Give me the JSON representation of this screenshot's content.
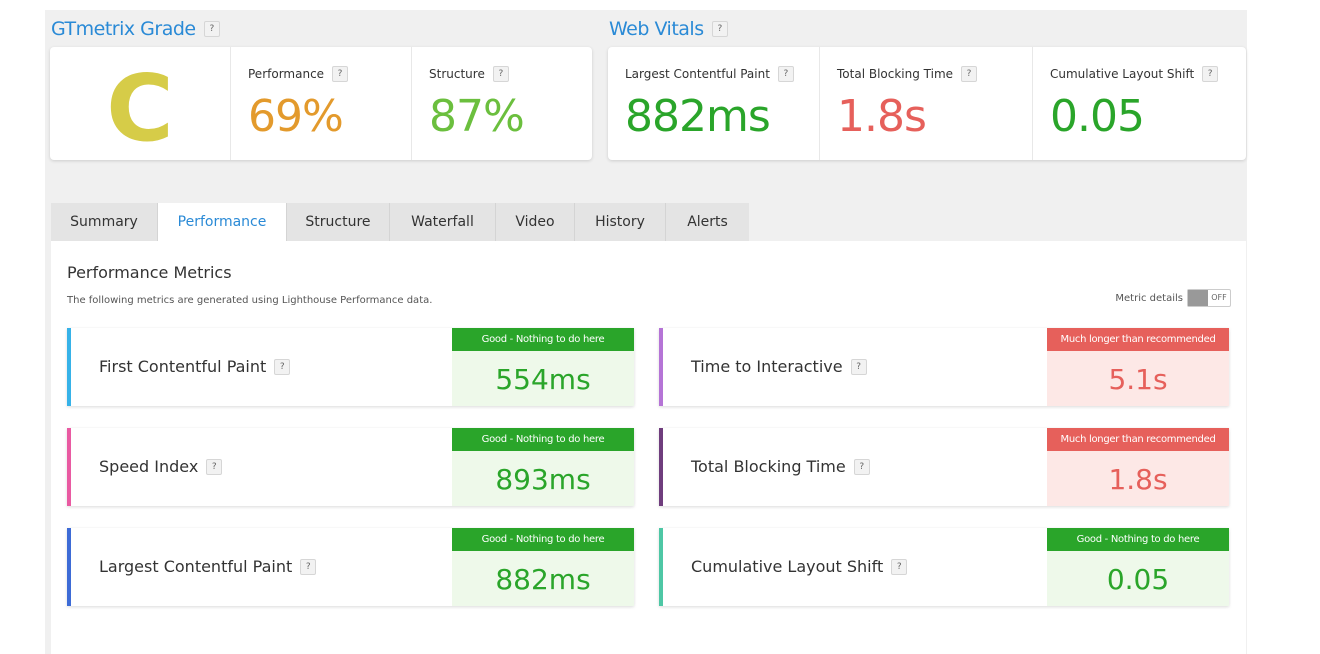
{
  "grade_section": {
    "title": "GTmetrix Grade",
    "grade": "C",
    "performance": {
      "label": "Performance",
      "value": "69%"
    },
    "structure": {
      "label": "Structure",
      "value": "87%"
    }
  },
  "vitals_section": {
    "title": "Web Vitals",
    "lcp": {
      "label": "Largest Contentful Paint",
      "value": "882ms"
    },
    "tbt": {
      "label": "Total Blocking Time",
      "value": "1.8s"
    },
    "cls": {
      "label": "Cumulative Layout Shift",
      "value": "0.05"
    }
  },
  "help_glyph": "?",
  "tabs": [
    {
      "label": "Summary"
    },
    {
      "label": "Performance"
    },
    {
      "label": "Structure"
    },
    {
      "label": "Waterfall"
    },
    {
      "label": "Video"
    },
    {
      "label": "History"
    },
    {
      "label": "Alerts"
    }
  ],
  "panel": {
    "title": "Performance Metrics",
    "description": "The following metrics are generated using Lighthouse Performance data.",
    "metric_details_label": "Metric details",
    "toggle_state": "OFF"
  },
  "metrics": [
    {
      "name": "First Contentful Paint",
      "value": "554ms",
      "badge": "Good - Nothing to do here"
    },
    {
      "name": "Time to Interactive",
      "value": "5.1s",
      "badge": "Much longer than recommended"
    },
    {
      "name": "Speed Index",
      "value": "893ms",
      "badge": "Good - Nothing to do here"
    },
    {
      "name": "Total Blocking Time",
      "value": "1.8s",
      "badge": "Much longer than recommended"
    },
    {
      "name": "Largest Contentful Paint",
      "value": "882ms",
      "badge": "Good - Nothing to do here"
    },
    {
      "name": "Cumulative Layout Shift",
      "value": "0.05",
      "badge": "Good - Nothing to do here"
    }
  ],
  "colors": {
    "accent_blue": "#2a8ad6",
    "grade_c": "#d6cc48",
    "performance": "#e39a2c",
    "structure": "#6bbf3e",
    "good": "#2aa52a",
    "bad": "#e6605b",
    "bar_fcp": "#36b2e8",
    "bar_tti": "#b574d6",
    "bar_si": "#e95aa2",
    "bar_tbt": "#6f3d7d",
    "bar_lcp": "#3d6bd6",
    "bar_cls": "#4ec7a5"
  }
}
